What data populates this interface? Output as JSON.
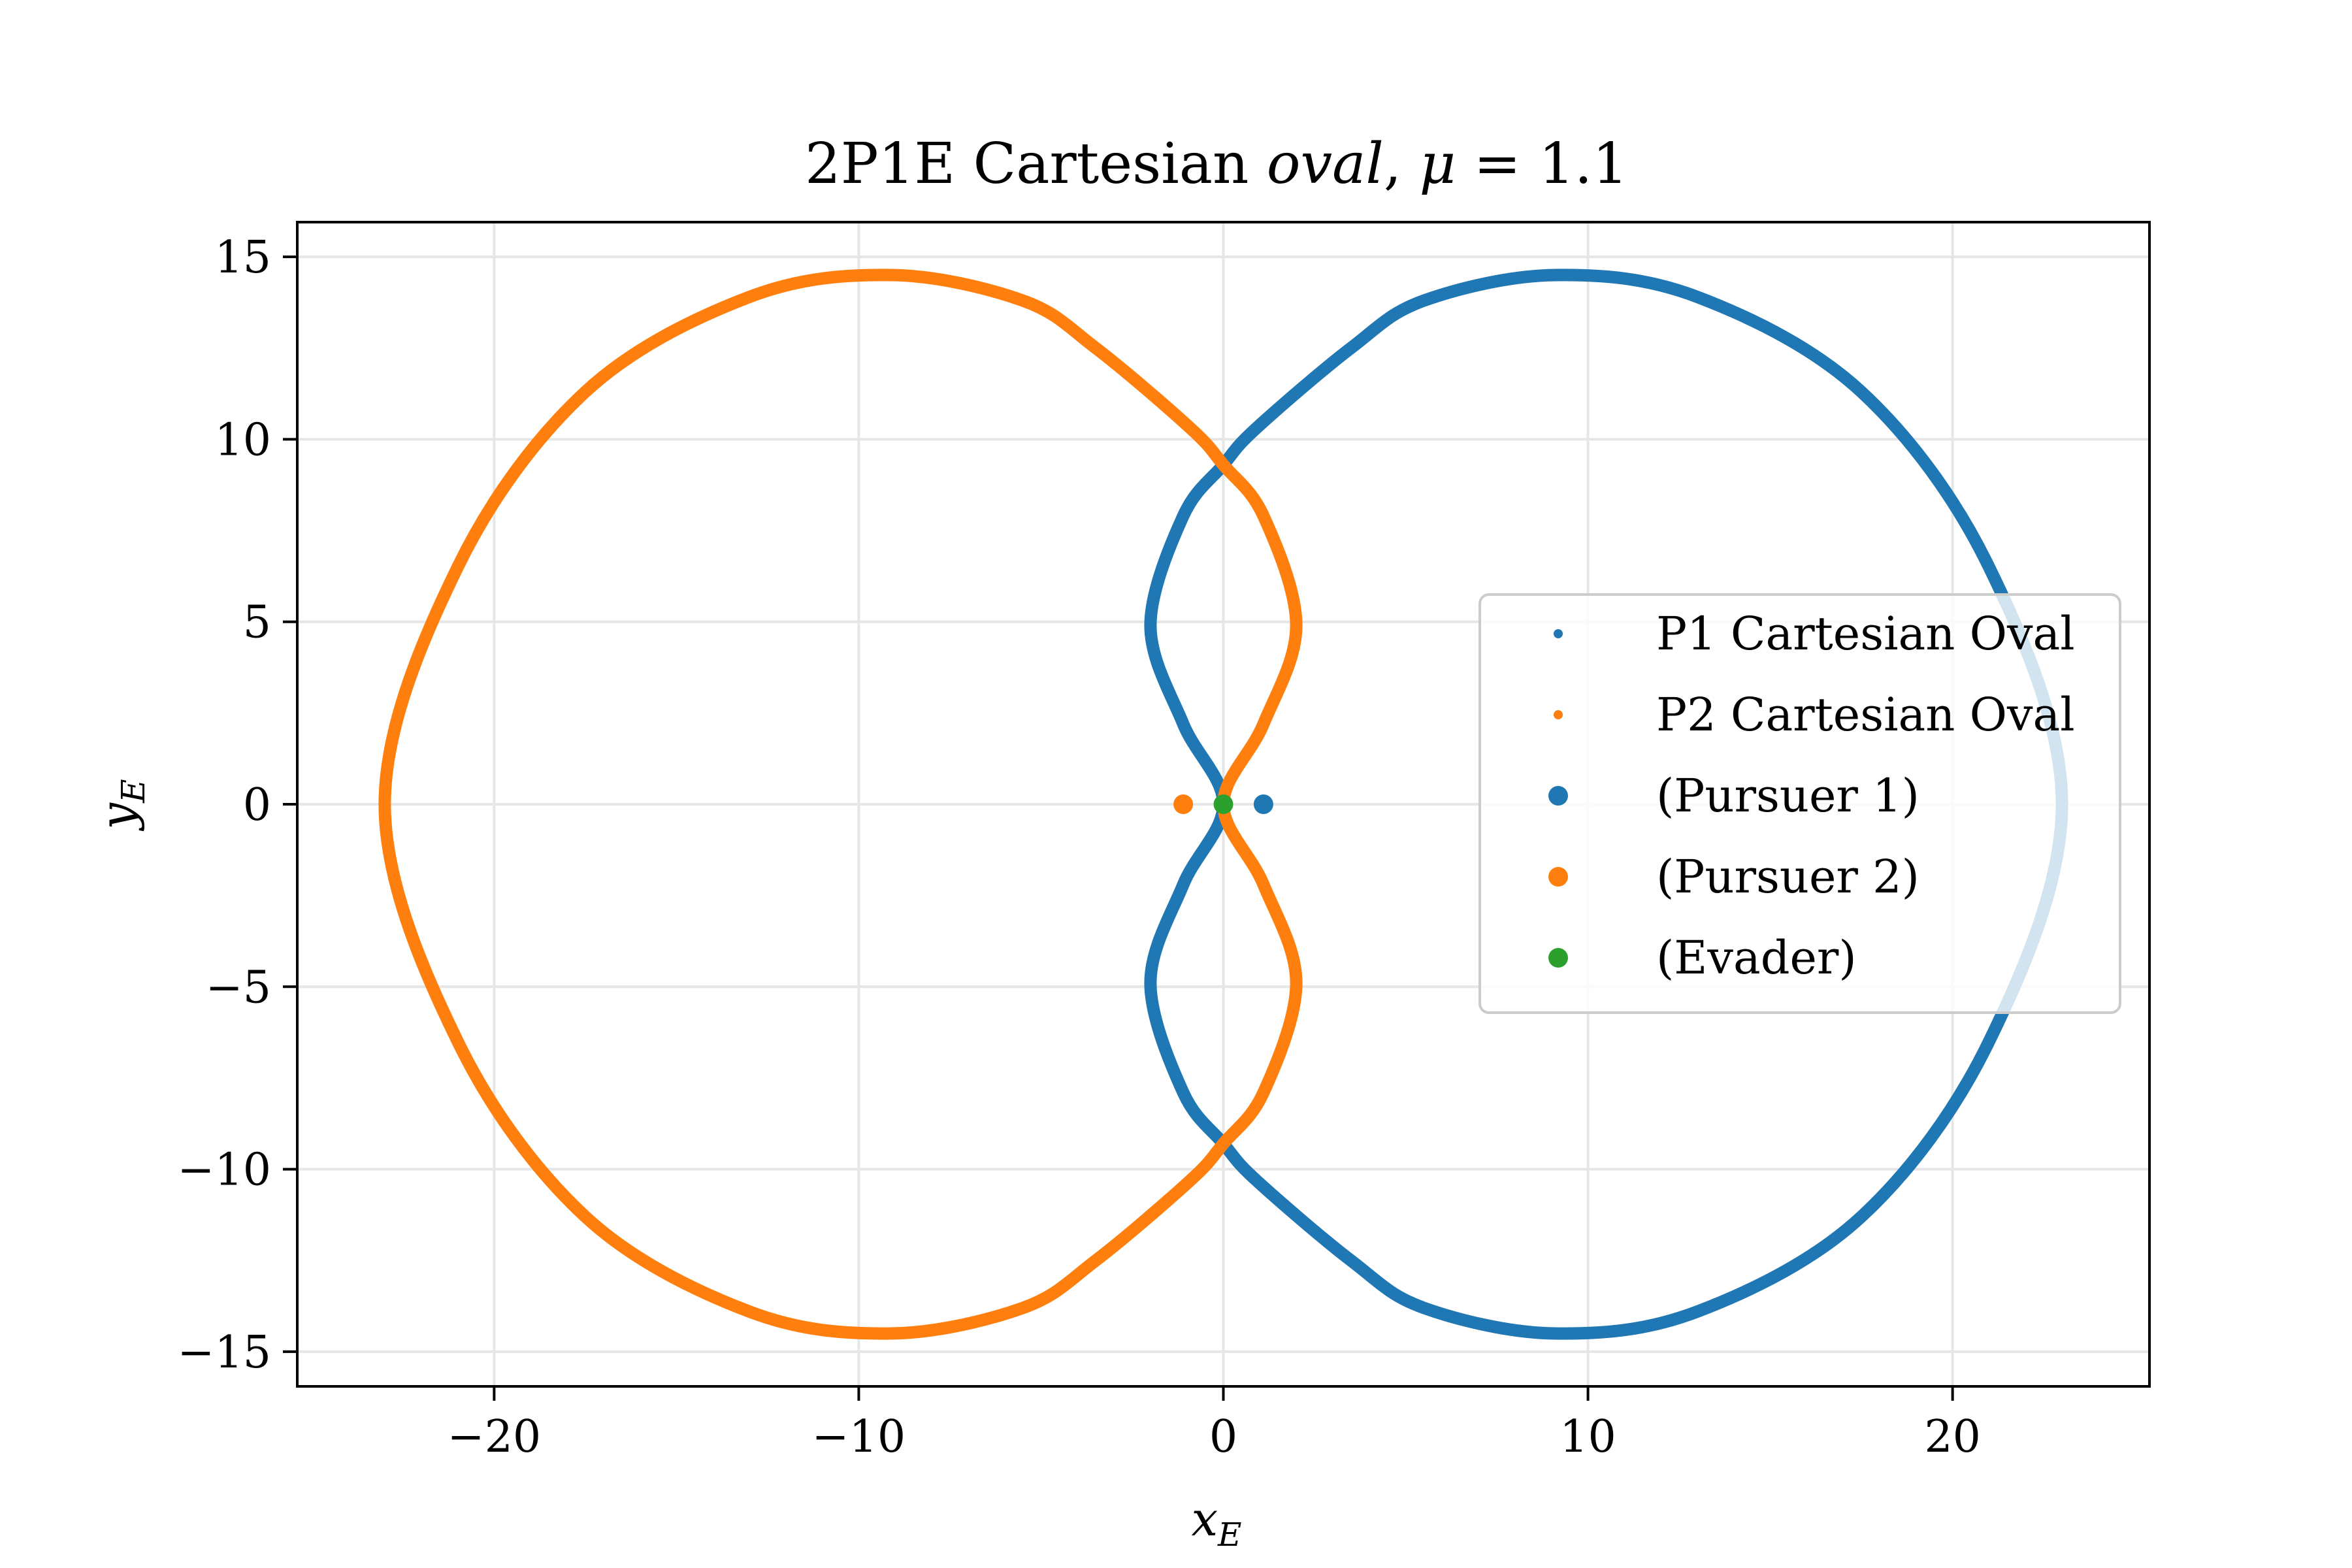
{
  "chart_data": {
    "type": "scatter",
    "title": "2P1E Cartesian oval, μ = 1.1",
    "title_parts": {
      "prefix": "2P1E Cartesian ",
      "italic_word": "oval",
      "suffix": ", ",
      "mu_symbol": "μ",
      "equals": " = 1.1"
    },
    "xlabel": "x",
    "xlabel_sub": "E",
    "ylabel": "y",
    "ylabel_sub": "E",
    "xlim": [
      -25.4,
      25.4
    ],
    "ylim": [
      -15.95,
      15.95
    ],
    "xticks": [
      -20,
      -10,
      0,
      10,
      20
    ],
    "xtick_labels": [
      "−20",
      "−10",
      "0",
      "10",
      "20"
    ],
    "yticks": [
      -15,
      -10,
      -5,
      0,
      5,
      10,
      15
    ],
    "ytick_labels": [
      "−15",
      "−10",
      "−5",
      "0",
      "5",
      "10",
      "15"
    ],
    "grid": true,
    "legend_position": "center-right",
    "mu": 1.1,
    "series": [
      {
        "name": "P1 Cartesian Oval",
        "color": "#1f77b4",
        "kind": "oval",
        "pursuer": [
          1.1,
          0
        ],
        "points": [
          [
            0,
            0
          ],
          [
            -1.1,
            2.2
          ],
          [
            -2.0,
            4.9
          ],
          [
            -1.1,
            7.9
          ],
          [
            0,
            9.3
          ],
          [
            0.9,
            10.3
          ],
          [
            3.5,
            12.5
          ],
          [
            5.5,
            13.8
          ],
          [
            9.1,
            14.5
          ],
          [
            13,
            13.9
          ],
          [
            17.5,
            11.3
          ],
          [
            21,
            6.5
          ],
          [
            23,
            0
          ],
          [
            21,
            -6.5
          ],
          [
            17.5,
            -11.3
          ],
          [
            13,
            -13.9
          ],
          [
            9.1,
            -14.5
          ],
          [
            5.5,
            -13.8
          ],
          [
            3.5,
            -12.5
          ],
          [
            0.9,
            -10.3
          ],
          [
            0,
            -9.3
          ],
          [
            -1.1,
            -7.9
          ],
          [
            -2.0,
            -4.9
          ],
          [
            -1.1,
            -2.2
          ]
        ]
      },
      {
        "name": "P2 Cartesian Oval",
        "color": "#ff7f0e",
        "kind": "oval",
        "pursuer": [
          -1.1,
          0
        ],
        "points": [
          [
            0,
            0
          ],
          [
            1.1,
            2.2
          ],
          [
            2.0,
            4.9
          ],
          [
            1.1,
            7.9
          ],
          [
            0,
            9.3
          ],
          [
            -0.9,
            10.3
          ],
          [
            -3.5,
            12.5
          ],
          [
            -5.5,
            13.8
          ],
          [
            -9.1,
            14.5
          ],
          [
            -13,
            13.9
          ],
          [
            -17.5,
            11.3
          ],
          [
            -21,
            6.5
          ],
          [
            -23,
            0
          ],
          [
            -21,
            -6.5
          ],
          [
            -17.5,
            -11.3
          ],
          [
            -13,
            -13.9
          ],
          [
            -9.1,
            -14.5
          ],
          [
            -5.5,
            -13.8
          ],
          [
            -3.5,
            -12.5
          ],
          [
            -0.9,
            -10.3
          ],
          [
            0,
            -9.3
          ],
          [
            1.1,
            -7.9
          ],
          [
            2.0,
            -4.9
          ],
          [
            1.1,
            -2.2
          ]
        ]
      },
      {
        "name": "(Pursuer 1)",
        "color": "#1f77b4",
        "kind": "point",
        "x": 1.1,
        "y": 0
      },
      {
        "name": "(Pursuer 2)",
        "color": "#ff7f0e",
        "kind": "point",
        "x": -1.1,
        "y": 0
      },
      {
        "name": "(Evader)",
        "color": "#2ca02c",
        "kind": "point",
        "x": 0,
        "y": 0
      }
    ]
  }
}
